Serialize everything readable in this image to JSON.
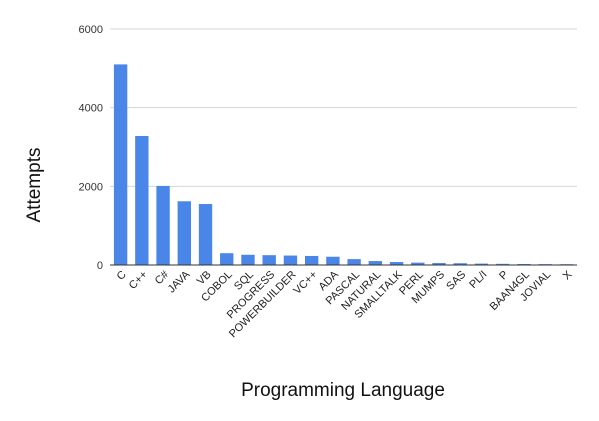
{
  "chart_data": {
    "type": "bar",
    "title": "",
    "xlabel": "Programming Language",
    "ylabel": "Attempts",
    "ylim": [
      0,
      6000
    ],
    "yticks": [
      "0",
      "2000",
      "4000",
      "6000"
    ],
    "grid": true,
    "legend": "none",
    "bar_color": "#4a86e8",
    "categories": [
      "C",
      "C++",
      "C#",
      "JAVA",
      "VB",
      "COBOL",
      "SQL",
      "PROGRESS",
      "POWERBUILDER",
      "VC++",
      "ADA",
      "PASCAL",
      "NATURAL",
      "SMALLTALK",
      "PERL",
      "MUMPS",
      "SAS",
      "PL/I",
      "P",
      "BAAN4GL",
      "JOVIAL",
      "X"
    ],
    "values": [
      5100,
      3280,
      2010,
      1620,
      1550,
      300,
      260,
      250,
      240,
      230,
      210,
      150,
      100,
      75,
      60,
      50,
      45,
      35,
      30,
      25,
      22,
      20
    ]
  }
}
